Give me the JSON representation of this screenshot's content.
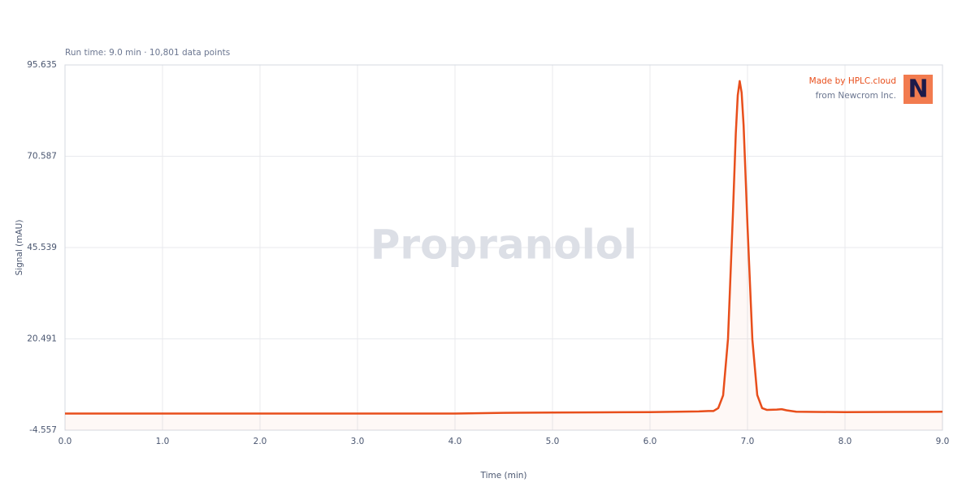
{
  "chart_data": {
    "type": "line",
    "subtitle": "Run time: 9.0 min · 10,801 data points",
    "watermark": "Propranolol",
    "annotations": [
      "Made by HPLC.cloud",
      "from Newcrom Inc."
    ],
    "logo": "N",
    "xlabel": "Time (min)",
    "ylabel": "Signal (mAU)",
    "color": "#e84e1b",
    "grid": true,
    "x": [
      0,
      0.5,
      1,
      1.5,
      2,
      2.5,
      3,
      3.5,
      4,
      4.5,
      5,
      5.5,
      6,
      6.5,
      6.6,
      6.65,
      6.7,
      6.75,
      6.8,
      6.85,
      6.88,
      6.9,
      6.92,
      6.94,
      6.96,
      7.0,
      7.05,
      7.1,
      7.15,
      7.2,
      7.3,
      7.35,
      7.4,
      7.5,
      8,
      8.5,
      9
    ],
    "values": [
      0,
      0,
      0,
      0,
      0,
      0,
      0,
      0,
      0,
      0.2,
      0.3,
      0.35,
      0.4,
      0.6,
      0.7,
      0.7,
      1.5,
      5.0,
      20.5,
      54.5,
      76.9,
      87.3,
      91.2,
      88.0,
      79.1,
      51.5,
      20.3,
      5.1,
      1.5,
      1.0,
      1.1,
      1.2,
      0.9,
      0.5,
      0.4,
      0.45,
      0.5
    ],
    "xlim": [
      0,
      9
    ],
    "xticks": [
      {
        "value": 0,
        "label": "0.0"
      },
      {
        "value": 1,
        "label": "1.0"
      },
      {
        "value": 2,
        "label": "2.0"
      },
      {
        "value": 3,
        "label": "3.0"
      },
      {
        "value": 4,
        "label": "4.0"
      },
      {
        "value": 5,
        "label": "5.0"
      },
      {
        "value": 6,
        "label": "6.0"
      },
      {
        "value": 7,
        "label": "7.0"
      },
      {
        "value": 8,
        "label": "8.0"
      },
      {
        "value": 9,
        "label": "9.0"
      }
    ],
    "ylim": [
      -4.557,
      95.635
    ],
    "yticks": [
      -4.557,
      20.491,
      45.539,
      70.587,
      95.635
    ]
  }
}
